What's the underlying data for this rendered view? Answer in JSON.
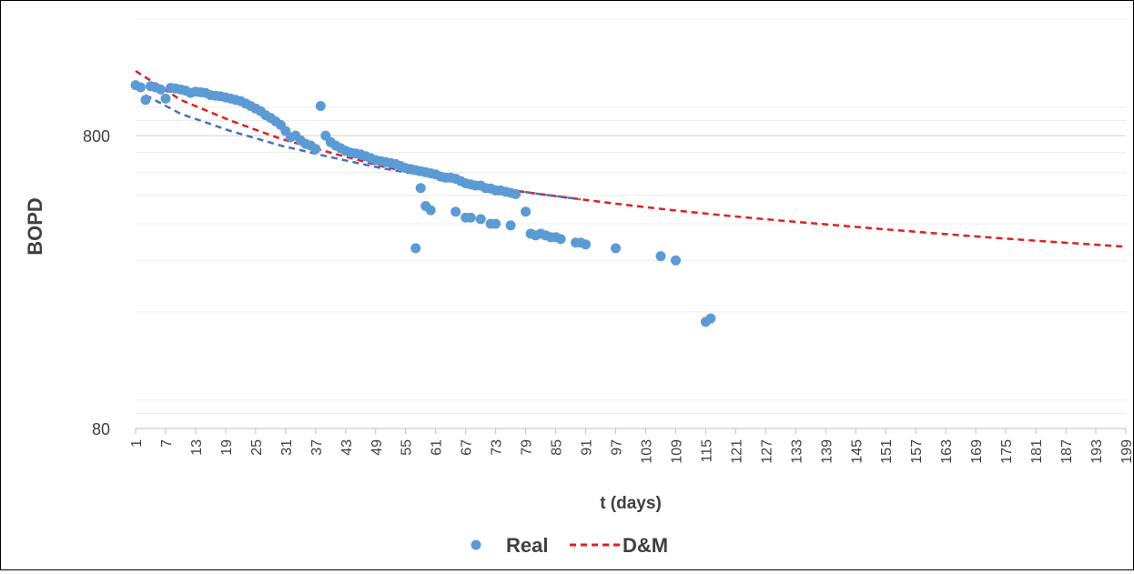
{
  "chart_data": {
    "type": "scatter",
    "title": "",
    "xlabel": "t (days)",
    "ylabel": "BOPD",
    "y_scale": "log",
    "ylim": [
      80,
      2000
    ],
    "xlim": [
      1,
      199
    ],
    "y_tick_labels": [
      "800",
      "80"
    ],
    "y_tick_values": [
      800,
      80
    ],
    "x_tick_labels": [
      "1",
      "7",
      "13",
      "19",
      "25",
      "31",
      "37",
      "43",
      "49",
      "55",
      "61",
      "67",
      "73",
      "79",
      "85",
      "91",
      "97",
      "103",
      "109",
      "115",
      "121",
      "127",
      "133",
      "139",
      "145",
      "151",
      "157",
      "163",
      "169",
      "175",
      "181",
      "187",
      "193",
      "199"
    ],
    "grid": true,
    "legend_position": "bottom",
    "legend": [
      {
        "label": "Real",
        "marker": "dot",
        "color": "#5b9bd5"
      },
      {
        "label": "D&M",
        "marker": "dashed-line",
        "color": "#e02020"
      }
    ],
    "series": [
      {
        "name": "Real",
        "kind": "points",
        "color": "#5b9bd5",
        "points": [
          [
            1,
            1190
          ],
          [
            2,
            1170
          ],
          [
            3,
            1060
          ],
          [
            4,
            1180
          ],
          [
            5,
            1170
          ],
          [
            6,
            1150
          ],
          [
            7,
            1070
          ],
          [
            8,
            1165
          ],
          [
            9,
            1160
          ],
          [
            10,
            1150
          ],
          [
            11,
            1140
          ],
          [
            12,
            1120
          ],
          [
            13,
            1130
          ],
          [
            14,
            1125
          ],
          [
            15,
            1120
          ],
          [
            16,
            1100
          ],
          [
            17,
            1095
          ],
          [
            18,
            1090
          ],
          [
            19,
            1080
          ],
          [
            20,
            1070
          ],
          [
            21,
            1060
          ],
          [
            22,
            1050
          ],
          [
            23,
            1030
          ],
          [
            24,
            1010
          ],
          [
            25,
            990
          ],
          [
            26,
            970
          ],
          [
            27,
            940
          ],
          [
            28,
            920
          ],
          [
            29,
            895
          ],
          [
            30,
            870
          ],
          [
            31,
            830
          ],
          [
            32,
            790
          ],
          [
            33,
            800
          ],
          [
            34,
            770
          ],
          [
            35,
            750
          ],
          [
            36,
            740
          ],
          [
            37,
            720
          ],
          [
            38,
            1010
          ],
          [
            39,
            800
          ],
          [
            40,
            760
          ],
          [
            41,
            740
          ],
          [
            42,
            725
          ],
          [
            43,
            710
          ],
          [
            44,
            700
          ],
          [
            45,
            695
          ],
          [
            46,
            690
          ],
          [
            47,
            680
          ],
          [
            48,
            670
          ],
          [
            49,
            660
          ],
          [
            50,
            655
          ],
          [
            51,
            650
          ],
          [
            52,
            645
          ],
          [
            53,
            640
          ],
          [
            54,
            630
          ],
          [
            55,
            620
          ],
          [
            56,
            615
          ],
          [
            57,
            610
          ],
          [
            58,
            605
          ],
          [
            59,
            600
          ],
          [
            60,
            595
          ],
          [
            61,
            590
          ],
          [
            62,
            580
          ],
          [
            63,
            575
          ],
          [
            64,
            575
          ],
          [
            65,
            570
          ],
          [
            66,
            560
          ],
          [
            67,
            550
          ],
          [
            68,
            545
          ],
          [
            69,
            540
          ],
          [
            70,
            540
          ],
          [
            71,
            530
          ],
          [
            72,
            528
          ],
          [
            73,
            520
          ],
          [
            74,
            520
          ],
          [
            75,
            515
          ],
          [
            76,
            510
          ],
          [
            77,
            505
          ],
          [
            57,
            330
          ],
          [
            58,
            530
          ],
          [
            59,
            460
          ],
          [
            60,
            445
          ],
          [
            65,
            440
          ],
          [
            67,
            420
          ],
          [
            68,
            420
          ],
          [
            70,
            415
          ],
          [
            72,
            400
          ],
          [
            73,
            400
          ],
          [
            76,
            395
          ],
          [
            79,
            440
          ],
          [
            80,
            370
          ],
          [
            81,
            365
          ],
          [
            82,
            370
          ],
          [
            83,
            365
          ],
          [
            84,
            360
          ],
          [
            85,
            360
          ],
          [
            86,
            355
          ],
          [
            89,
            345
          ],
          [
            90,
            345
          ],
          [
            91,
            340
          ],
          [
            97,
            330
          ],
          [
            106,
            310
          ],
          [
            109,
            300
          ],
          [
            115,
            185
          ],
          [
            116,
            190
          ]
        ]
      },
      {
        "name": "D&M",
        "kind": "dashed-line",
        "color": "#e02020",
        "points": [
          [
            1,
            1330
          ],
          [
            10,
            1060
          ],
          [
            20,
            900
          ],
          [
            30,
            780
          ],
          [
            40,
            700
          ],
          [
            50,
            630
          ],
          [
            60,
            580
          ],
          [
            70,
            540
          ],
          [
            80,
            510
          ],
          [
            90,
            485
          ],
          [
            100,
            462
          ],
          [
            110,
            442
          ],
          [
            120,
            425
          ],
          [
            130,
            410
          ],
          [
            140,
            397
          ],
          [
            150,
            384
          ],
          [
            160,
            372
          ],
          [
            170,
            361
          ],
          [
            180,
            351
          ],
          [
            190,
            342
          ],
          [
            199,
            334
          ]
        ]
      },
      {
        "kind": "dashed-line",
        "color": "#4472c4",
        "points": [
          [
            3,
            1100
          ],
          [
            10,
            950
          ],
          [
            20,
            830
          ],
          [
            30,
            740
          ],
          [
            40,
            675
          ],
          [
            50,
            620
          ],
          [
            60,
            580
          ],
          [
            70,
            540
          ],
          [
            80,
            510
          ],
          [
            90,
            485
          ]
        ]
      }
    ]
  }
}
